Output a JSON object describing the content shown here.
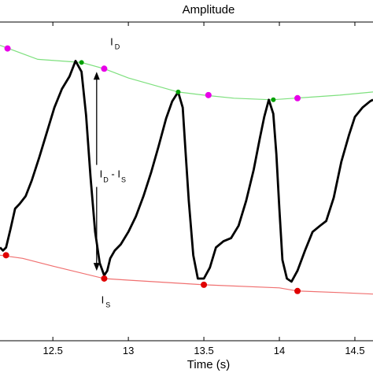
{
  "chart_data": {
    "type": "line",
    "title": "Amplitude",
    "xlabel": "Time (s)",
    "ylabel": "",
    "xlim": [
      12.15,
      14.62
    ],
    "ylim": [
      -0.6,
      1.45
    ],
    "xticks": [
      12.5,
      13,
      13.5,
      14,
      14.5
    ],
    "xtick_labels": [
      "12.5",
      "13",
      "13.5",
      "14",
      "14.5"
    ],
    "grid": false,
    "legend": "none",
    "colors": {
      "signal": "#000000",
      "diastolic_envelope": "#7ee07e",
      "systolic_envelope": "#f07070",
      "diastolic_marker": "#e800e8",
      "systolic_marker": "#e00000",
      "peak_marker": "#00a000"
    },
    "series": [
      {
        "kind": "signal",
        "x": [
          12.15,
          12.17,
          12.19,
          12.22,
          12.25,
          12.28,
          12.32,
          12.36,
          12.41,
          12.46,
          12.51,
          12.56,
          12.61,
          12.65,
          12.69,
          12.72,
          12.75,
          12.78,
          12.81,
          12.84,
          12.86,
          12.88,
          12.91,
          12.95,
          13.0,
          13.05,
          13.1,
          13.15,
          13.2,
          13.25,
          13.29,
          13.33,
          13.36,
          13.38,
          13.4,
          13.43,
          13.46,
          13.5,
          13.54,
          13.58,
          13.63,
          13.68,
          13.73,
          13.78,
          13.83,
          13.87,
          13.9,
          13.93,
          13.96,
          13.98,
          14.0,
          14.02,
          14.05,
          14.08,
          14.12,
          14.17,
          14.22,
          14.27,
          14.31,
          14.36,
          14.41,
          14.46,
          14.5,
          14.55,
          14.6,
          14.62
        ],
        "y": [
          0.0,
          -0.02,
          0.0,
          0.12,
          0.25,
          0.28,
          0.33,
          0.43,
          0.58,
          0.74,
          0.9,
          1.02,
          1.1,
          1.2,
          1.13,
          0.85,
          0.45,
          0.1,
          -0.1,
          -0.18,
          -0.15,
          -0.07,
          -0.02,
          0.02,
          0.1,
          0.2,
          0.33,
          0.48,
          0.65,
          0.83,
          0.94,
          1.0,
          0.9,
          0.6,
          0.3,
          -0.05,
          -0.2,
          -0.2,
          -0.13,
          0.0,
          0.04,
          0.06,
          0.14,
          0.3,
          0.5,
          0.7,
          0.84,
          0.95,
          0.86,
          0.6,
          0.25,
          -0.08,
          -0.2,
          -0.22,
          -0.15,
          -0.02,
          0.1,
          0.14,
          0.17,
          0.32,
          0.55,
          0.72,
          0.84,
          0.9,
          0.94,
          0.95
        ]
      },
      {
        "kind": "diastolic_envelope",
        "x": [
          12.15,
          12.4,
          12.69,
          12.84,
          13.0,
          13.33,
          13.5,
          13.7,
          13.95,
          14.1,
          14.4,
          14.62
        ],
        "y": [
          1.3,
          1.21,
          1.19,
          1.15,
          1.09,
          1.0,
          0.98,
          0.96,
          0.95,
          0.96,
          0.98,
          1.0
        ]
      },
      {
        "kind": "systolic_envelope",
        "x": [
          12.15,
          12.3,
          12.5,
          12.84,
          13.0,
          13.5,
          14.0,
          14.12,
          14.4,
          14.62
        ],
        "y": [
          -0.05,
          -0.07,
          -0.12,
          -0.2,
          -0.21,
          -0.24,
          -0.26,
          -0.28,
          -0.29,
          -0.3
        ]
      },
      {
        "kind": "diastolic_markers",
        "x": [
          12.2,
          12.84,
          13.53,
          14.12
        ],
        "y": [
          1.28,
          1.15,
          0.98,
          0.96
        ]
      },
      {
        "kind": "systolic_markers",
        "x": [
          12.19,
          12.84,
          13.5,
          14.12
        ],
        "y": [
          -0.05,
          -0.2,
          -0.24,
          -0.28
        ]
      },
      {
        "kind": "peak_markers",
        "x": [
          12.69,
          13.33,
          13.96
        ],
        "y": [
          1.19,
          1.0,
          0.95
        ]
      }
    ],
    "annotations": {
      "id_label": {
        "main": "I",
        "sub": "D",
        "x": 12.88,
        "y": 1.3
      },
      "is_label": {
        "main": "I",
        "sub": "S",
        "x": 12.82,
        "y": -0.36
      },
      "diff_label": {
        "parts": [
          "I",
          "D",
          " - I",
          "S"
        ],
        "x": 12.81,
        "y": 0.45
      },
      "diff_arrow": {
        "x": 12.79,
        "y_top": 1.13,
        "y_bottom": -0.15
      }
    }
  }
}
